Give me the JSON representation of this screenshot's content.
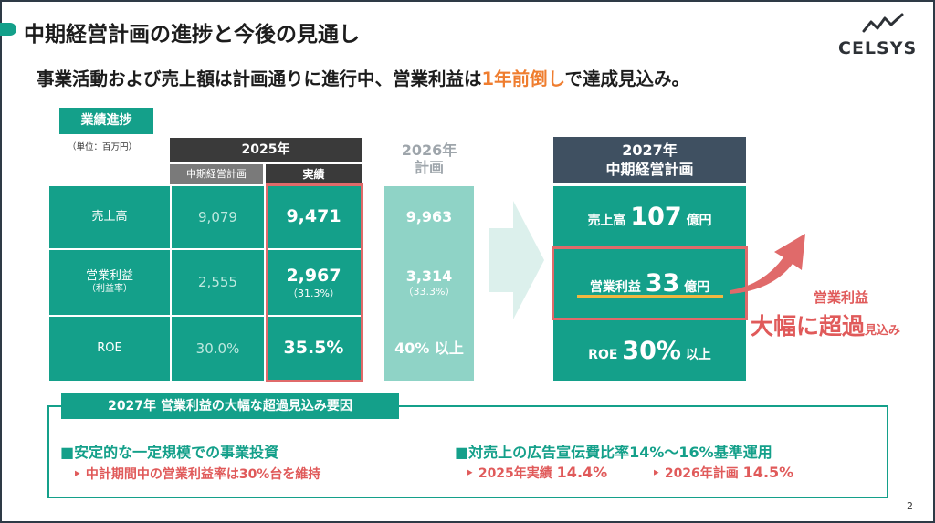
{
  "header": {
    "title": "中期経営計画の進捗と今後の見通し",
    "logo_text": "CELSYS"
  },
  "subtitle": {
    "pre": "事業活動および売上額は計画通りに進行中、営業利益は",
    "highlight": "1年前倒し",
    "post": "で達成見込み。"
  },
  "table": {
    "tag": "業績進捗",
    "unit": "（単位：百万円）",
    "year_header": "2025年",
    "col_plan": "中期経営計画",
    "col_actual": "実績",
    "rows": [
      {
        "label": "売上高",
        "sublabel": "",
        "plan": "9,079",
        "actual": "9,471",
        "actual_sub": ""
      },
      {
        "label": "営業利益",
        "sublabel": "（利益率）",
        "plan": "2,555",
        "actual": "2,967",
        "actual_sub": "（31.3%）"
      },
      {
        "label": "ROE",
        "sublabel": "",
        "plan": "30.0%",
        "actual": "35.5%",
        "actual_sub": ""
      }
    ]
  },
  "plan2026": {
    "header_year": "2026年",
    "header_label": "計画",
    "rows": [
      {
        "value": "9,963",
        "sub": ""
      },
      {
        "value": "3,314",
        "sub": "（33.3%）"
      },
      {
        "value": "40% 以上",
        "sub": ""
      }
    ]
  },
  "plan2027": {
    "header_year": "2027年",
    "header_label": "中期経営計画",
    "rows": [
      {
        "label": "売上高",
        "value": "107",
        "unit": "億円"
      },
      {
        "label": "営業利益",
        "value": "33",
        "unit": "億円"
      },
      {
        "label": "ROE",
        "value": "30%",
        "unit": "以上"
      }
    ]
  },
  "callout": {
    "line1": "営業利益",
    "line2_big": "大幅に超過",
    "line2_small": "見込み"
  },
  "factors": {
    "header": "2027年 営業利益の大幅な超過見込み要因",
    "left_title": "■安定的な一定規模での事業投資",
    "left_sub": "‣ 中計期間中の営業利益率は30%台を維持",
    "right_title": "■対売上の広告宣伝費比率14%～16%基準運用",
    "right_sub1_label": "‣ 2025年実績",
    "right_sub1_value": "14.4%",
    "right_sub2_label": "‣ 2026年計画",
    "right_sub2_value": "14.5%"
  },
  "page_number": "2",
  "colors": {
    "teal": "#14a08a",
    "light_teal": "#8fd3c6",
    "red": "#e06a6a",
    "orange": "#ef7d2f",
    "dark": "#3a3a3a"
  }
}
